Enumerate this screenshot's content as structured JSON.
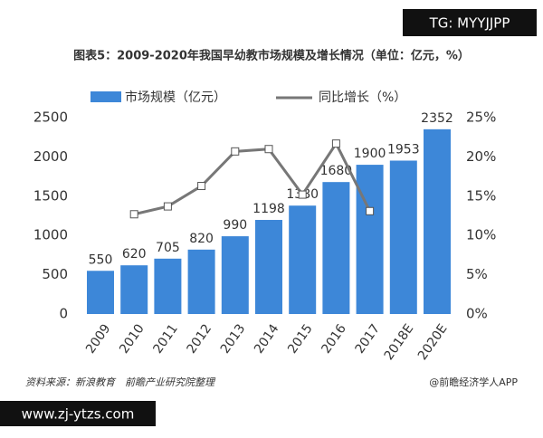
{
  "watermark_top": "TG: MYYJJPP",
  "chart_data": {
    "type": "bar",
    "title": "图表5：2009-2020年我国早幼教市场规模及增长情况（单位：亿元，%）",
    "categories": [
      "2009",
      "2010",
      "2011",
      "2012",
      "2013",
      "2014",
      "2015",
      "2016",
      "2017",
      "2018E",
      "2020E"
    ],
    "series": [
      {
        "name": "市场规模（亿元）",
        "color": "#3d87d8",
        "values": [
          550,
          620,
          705,
          820,
          990,
          1198,
          1380,
          1680,
          1900,
          1953,
          2352
        ]
      },
      {
        "name": "同比增长（%）",
        "color": "#777777",
        "type": "line",
        "axis": "y2",
        "values": [
          null,
          12.7,
          13.7,
          16.3,
          20.7,
          21.0,
          15.2,
          21.7,
          13.1,
          null,
          null
        ]
      }
    ],
    "ylim": [
      0,
      2500
    ],
    "yticks": [
      0,
      500,
      1000,
      1500,
      2000,
      2500
    ],
    "y2lim": [
      0,
      25
    ],
    "y2ticks": [
      {
        "value": 0,
        "label": "0%"
      },
      {
        "value": 5,
        "label": "5%"
      },
      {
        "value": 10,
        "label": "10%"
      },
      {
        "value": 15,
        "label": "15%"
      },
      {
        "value": 20,
        "label": "20%"
      },
      {
        "value": 25,
        "label": "25%"
      }
    ]
  },
  "footer": {
    "source": "资料来源：新浪教育　前瞻产业研究院整理",
    "credit": "@前瞻经济学人APP"
  },
  "watermark_bottom": "www.zj-ytzs.com"
}
